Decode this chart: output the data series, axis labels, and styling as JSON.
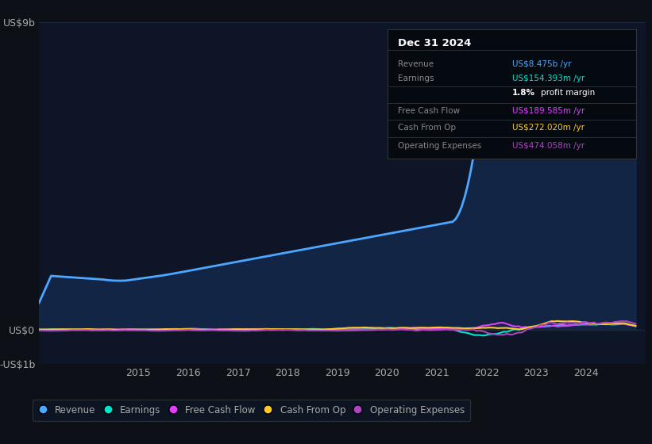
{
  "background_color": "#0d1117",
  "plot_bg_color": "#0d1526",
  "title": "Dec 31 2024",
  "ylim": [
    -1000000000.0,
    9000000000.0
  ],
  "yticks": [
    -1000000000.0,
    0,
    9000000000.0
  ],
  "ytick_labels": [
    "-US$1b",
    "US$0",
    "US$9b"
  ],
  "xlabel_ticks": [
    2015,
    2016,
    2017,
    2018,
    2019,
    2020,
    2021,
    2022,
    2023,
    2024
  ],
  "series": {
    "revenue": {
      "color": "#4da6ff",
      "fill_color": "#1a3a6b",
      "linewidth": 2.0
    },
    "earnings": {
      "color": "#00e5cc",
      "linewidth": 1.5
    },
    "free_cash_flow": {
      "color": "#e040fb",
      "linewidth": 1.5
    },
    "cash_from_op": {
      "color": "#ffca28",
      "linewidth": 1.5
    },
    "operating_expenses": {
      "color": "#ab47bc",
      "linewidth": 1.5
    }
  },
  "legend": [
    {
      "label": "Revenue",
      "color": "#4da6ff"
    },
    {
      "label": "Earnings",
      "color": "#00e5cc"
    },
    {
      "label": "Free Cash Flow",
      "color": "#e040fb"
    },
    {
      "label": "Cash From Op",
      "color": "#ffca28"
    },
    {
      "label": "Operating Expenses",
      "color": "#ab47bc"
    }
  ],
  "grid_color": "#1e2a3a",
  "tick_color": "#888888",
  "text_color": "#aaaaaa",
  "info_rows": [
    {
      "label": "Revenue",
      "value": "US$8.475b /yr",
      "value_color": "#4da6ff",
      "is_margin": false
    },
    {
      "label": "Earnings",
      "value": "US$154.393m /yr",
      "value_color": "#00e5cc",
      "is_margin": false
    },
    {
      "label": "",
      "value": "",
      "value_color": "#ffffff",
      "is_margin": true
    },
    {
      "label": "Free Cash Flow",
      "value": "US$189.585m /yr",
      "value_color": "#e040fb",
      "is_margin": false
    },
    {
      "label": "Cash From Op",
      "value": "US$272.020m /yr",
      "value_color": "#ffca28",
      "is_margin": false
    },
    {
      "label": "Operating Expenses",
      "value": "US$474.058m /yr",
      "value_color": "#ab47bc",
      "is_margin": false
    }
  ]
}
